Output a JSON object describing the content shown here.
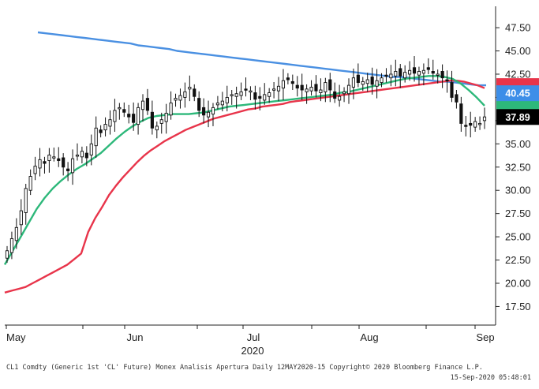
{
  "chart_data": {
    "type": "candlestick",
    "x_labels": [
      "May",
      "Jun",
      "Jul",
      "Aug",
      "Sep"
    ],
    "x_year_label": "2020",
    "y_ticks": [
      "17.50",
      "20.00",
      "22.50",
      "25.00",
      "27.50",
      "30.00",
      "32.50",
      "35.00",
      "37.50",
      "40.00",
      "42.50",
      "45.00",
      "47.50"
    ],
    "ylim": [
      15.5,
      49.8
    ],
    "price_tags": [
      {
        "label": "40.45",
        "value": 40.45,
        "bg": "#3d8ee8",
        "fg": "#ffffff"
      },
      {
        "label": "37.89",
        "value": 37.89,
        "bg": "#000000",
        "fg": "#ffffff"
      }
    ],
    "candles_close": [
      23.5,
      24.8,
      26.0,
      27.8,
      30.2,
      31.5,
      32.6,
      33.3,
      32.9,
      33.8,
      33.6,
      33.2,
      32.5,
      32.1,
      33.4,
      33.8,
      34.2,
      33.5,
      35.0,
      36.7,
      36.2,
      37.1,
      37.6,
      38.6,
      38.9,
      38.4,
      37.9,
      37.3,
      38.9,
      39.6,
      38.6,
      36.7,
      36.9,
      37.6,
      38.3,
      39.4,
      39.9,
      40.2,
      40.6,
      41.1,
      40.1,
      38.6,
      38.1,
      38.4,
      38.9,
      39.4,
      39.6,
      40.0,
      40.3,
      40.4,
      40.6,
      40.8,
      40.7,
      39.8,
      39.9,
      40.3,
      40.5,
      40.9,
      41.2,
      41.8,
      41.9,
      41.5,
      41.0,
      40.8,
      40.9,
      41.1,
      40.7,
      40.8,
      41.6,
      40.8,
      39.9,
      40.1,
      40.6,
      41.3,
      42.1,
      41.6,
      41.7,
      41.9,
      41.4,
      41.8,
      42.1,
      42.3,
      42.5,
      42.8,
      42.3,
      42.7,
      42.9,
      42.6,
      42.8,
      42.9,
      43.0,
      42.6,
      42.5,
      42.1,
      41.8,
      40.0,
      39.5,
      37.2,
      36.9,
      37.0,
      37.4,
      37.2,
      37.9
    ],
    "series": [
      {
        "name": "",
        "color": "#4a90e2",
        "values": [
          47.0,
          46.9,
          46.8,
          46.7,
          46.6,
          46.5,
          46.4,
          46.3,
          46.2,
          46.1,
          46.0,
          45.9,
          45.8,
          45.6,
          45.5,
          45.4,
          45.3,
          45.2,
          45.0,
          44.9,
          44.8,
          44.7,
          44.6,
          44.5,
          44.4,
          44.3,
          44.2,
          44.1,
          44.0,
          43.9,
          43.8,
          43.7,
          43.6,
          43.5,
          43.4,
          43.3,
          43.2,
          43.1,
          43.0,
          42.9,
          42.8,
          42.7,
          42.6,
          42.5,
          42.4,
          42.3,
          42.2,
          42.2,
          42.1,
          42.0,
          41.9,
          41.8,
          41.7,
          41.7,
          41.6,
          41.5,
          41.4,
          41.3,
          41.3
        ]
      },
      {
        "name": "",
        "color": "#e8344a",
        "values": [
          19.0,
          19.2,
          19.4,
          19.6,
          20.0,
          20.4,
          20.8,
          21.2,
          21.6,
          22.0,
          22.6,
          23.2,
          25.5,
          27.0,
          28.2,
          29.5,
          30.5,
          31.4,
          32.2,
          33.0,
          33.7,
          34.3,
          34.8,
          35.3,
          35.7,
          36.1,
          36.5,
          36.8,
          37.1,
          37.4,
          37.7,
          37.9,
          38.1,
          38.3,
          38.5,
          38.7,
          38.8,
          39.0,
          39.1,
          39.2,
          39.3,
          39.5,
          39.6,
          39.7,
          39.8,
          39.9,
          40.0,
          40.1,
          40.2,
          40.3,
          40.4,
          40.5,
          40.6,
          40.7,
          40.8,
          40.9,
          41.0,
          41.1,
          41.2,
          41.3,
          41.4,
          41.5,
          41.6,
          41.7,
          41.8,
          41.8,
          41.7,
          41.5,
          41.3,
          41.0
        ]
      },
      {
        "name": "",
        "color": "#2db87a",
        "values": [
          22.0,
          23.5,
          25.0,
          26.5,
          28.0,
          29.2,
          30.2,
          31.0,
          31.7,
          32.3,
          32.8,
          33.4,
          34.0,
          34.8,
          35.6,
          36.3,
          36.9,
          37.4,
          37.8,
          38.0,
          38.1,
          38.2,
          38.2,
          38.2,
          38.3,
          38.4,
          38.6,
          38.8,
          39.0,
          39.1,
          39.2,
          39.3,
          39.4,
          39.5,
          39.6,
          39.7,
          39.8,
          39.9,
          40.0,
          40.1,
          40.2,
          40.3,
          40.5,
          40.6,
          40.8,
          41.0,
          41.2,
          41.4,
          41.6,
          41.8,
          42.0,
          42.1,
          42.2,
          42.3,
          42.3,
          42.2,
          42.0,
          41.5,
          40.8,
          40.0,
          39.1
        ]
      }
    ]
  },
  "footer": {
    "line1": "CL1 Comdty (Generic 1st 'CL' Future) Monex Analisis Apertura  Daily 12MAY2020-15  Copyright© 2020 Bloomberg Finance L.P.",
    "line2": "15-Sep-2020 05:48:01"
  }
}
